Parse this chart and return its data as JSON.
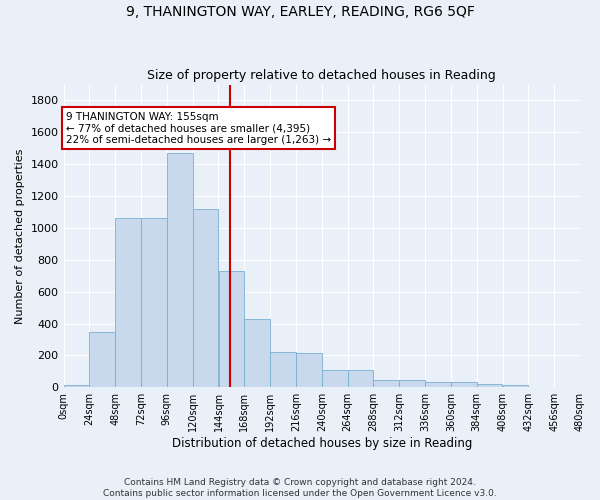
{
  "title": "9, THANINGTON WAY, EARLEY, READING, RG6 5QF",
  "subtitle": "Size of property relative to detached houses in Reading",
  "xlabel": "Distribution of detached houses by size in Reading",
  "ylabel": "Number of detached properties",
  "bar_color": "#c9d9ed",
  "bar_edge_color": "#7aafd4",
  "background_color": "#eaf0f8",
  "grid_color": "#ffffff",
  "fig_background": "#eaf0f8",
  "vline_x": 155,
  "vline_color": "#cc0000",
  "annotation_text": "9 THANINGTON WAY: 155sqm\n← 77% of detached houses are smaller (4,395)\n22% of semi-detached houses are larger (1,263) →",
  "annotation_box_color": "#ffffff",
  "annotation_border_color": "#cc0000",
  "footer_line1": "Contains HM Land Registry data © Crown copyright and database right 2024.",
  "footer_line2": "Contains public sector information licensed under the Open Government Licence v3.0.",
  "bin_edges": [
    0,
    24,
    48,
    72,
    96,
    120,
    144,
    168,
    192,
    216,
    240,
    264,
    288,
    312,
    336,
    360,
    384,
    408,
    432,
    456,
    480
  ],
  "bar_heights": [
    15,
    350,
    1060,
    1060,
    1470,
    1120,
    730,
    430,
    220,
    215,
    110,
    110,
    45,
    45,
    35,
    35,
    18,
    12,
    5,
    2
  ],
  "ylim": [
    0,
    1900
  ],
  "yticks": [
    0,
    200,
    400,
    600,
    800,
    1000,
    1200,
    1400,
    1600,
    1800
  ]
}
